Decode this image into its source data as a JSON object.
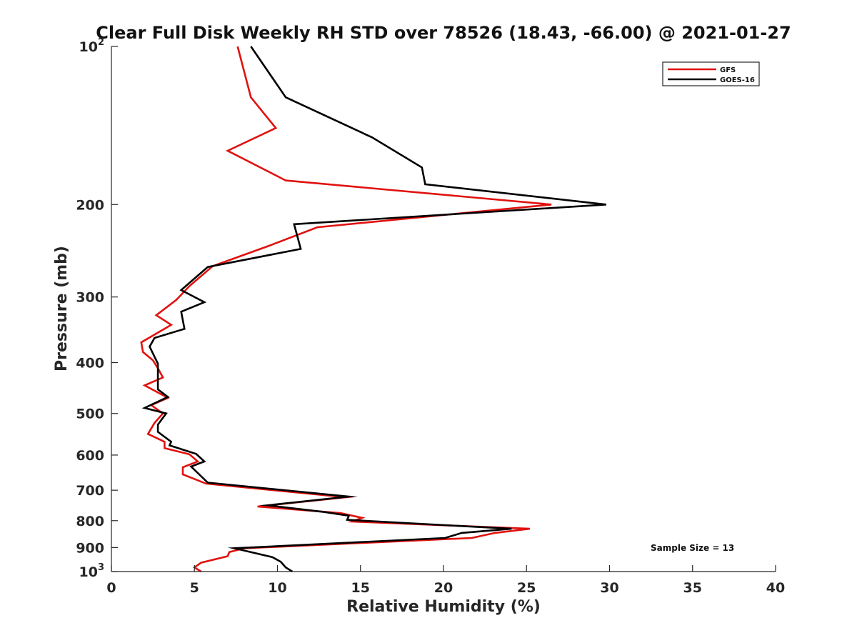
{
  "chart_data": {
    "type": "line",
    "title": "Clear Full Disk Weekly RH STD over 78526 (18.43, -66.00) @ 2021-01-27",
    "xlabel": "Relative Humidity (%)",
    "ylabel": "Pressure (mb)",
    "xlim": [
      0,
      40
    ],
    "ylim": [
      100,
      1000
    ],
    "y_scale": "log",
    "y_reversed": true,
    "grid": false,
    "legend_position": "top-right",
    "x_ticks": [
      "0",
      "5",
      "10",
      "15",
      "20",
      "25",
      "30",
      "35",
      "40"
    ],
    "y_ticks": [
      {
        "value": 100,
        "base": "10",
        "exp": "2"
      },
      {
        "value": 200,
        "label": "200"
      },
      {
        "value": 300,
        "label": "300"
      },
      {
        "value": 400,
        "label": "400"
      },
      {
        "value": 500,
        "label": "500"
      },
      {
        "value": 600,
        "label": "600"
      },
      {
        "value": 700,
        "label": "700"
      },
      {
        "value": 800,
        "label": "800"
      },
      {
        "value": 900,
        "label": "900"
      },
      {
        "value": 1000,
        "base": "10",
        "exp": "3"
      }
    ],
    "annotation": "Sample Size = 13",
    "series": [
      {
        "name": "GFS",
        "color": "#e0120f",
        "points": [
          [
            7.6,
            100
          ],
          [
            8.4,
            125
          ],
          [
            9.9,
            143
          ],
          [
            7.0,
            158
          ],
          [
            10.5,
            180
          ],
          [
            26.5,
            200
          ],
          [
            12.4,
            221
          ],
          [
            9.6,
            239
          ],
          [
            6.1,
            262
          ],
          [
            4.7,
            286
          ],
          [
            3.9,
            304
          ],
          [
            2.7,
            325
          ],
          [
            3.6,
            339
          ],
          [
            1.8,
            366
          ],
          [
            1.9,
            382
          ],
          [
            2.5,
            396
          ],
          [
            2.8,
            410
          ],
          [
            3.1,
            427
          ],
          [
            2.0,
            442
          ],
          [
            3.4,
            467
          ],
          [
            2.4,
            482
          ],
          [
            3.1,
            500
          ],
          [
            2.6,
            521
          ],
          [
            2.2,
            547
          ],
          [
            3.2,
            566
          ],
          [
            3.2,
            582
          ],
          [
            4.7,
            598
          ],
          [
            5.2,
            617
          ],
          [
            4.3,
            633
          ],
          [
            4.3,
            653
          ],
          [
            5.7,
            680
          ],
          [
            14.1,
            722
          ],
          [
            8.8,
            752
          ],
          [
            13.8,
            774
          ],
          [
            15.1,
            790
          ],
          [
            14.5,
            803
          ],
          [
            25.2,
            829
          ],
          [
            23.1,
            844
          ],
          [
            21.7,
            863
          ],
          [
            8.0,
            903
          ],
          [
            7.1,
            918
          ],
          [
            7.0,
            935
          ],
          [
            5.4,
            962
          ],
          [
            5.0,
            982
          ],
          [
            5.4,
            1000
          ]
        ]
      },
      {
        "name": "GOES-16",
        "color": "#000000",
        "points": [
          [
            8.4,
            100
          ],
          [
            10.5,
            125
          ],
          [
            15.7,
            149
          ],
          [
            18.7,
            170
          ],
          [
            18.9,
            183
          ],
          [
            29.8,
            200
          ],
          [
            11.0,
            218
          ],
          [
            11.4,
            243
          ],
          [
            5.8,
            263
          ],
          [
            4.2,
            291
          ],
          [
            5.6,
            307
          ],
          [
            4.2,
            320
          ],
          [
            4.4,
            345
          ],
          [
            2.6,
            359
          ],
          [
            2.3,
            373
          ],
          [
            2.8,
            402
          ],
          [
            2.8,
            428
          ],
          [
            2.8,
            450
          ],
          [
            3.4,
            465
          ],
          [
            2.0,
            488
          ],
          [
            3.3,
            500
          ],
          [
            2.8,
            525
          ],
          [
            2.8,
            542
          ],
          [
            3.6,
            566
          ],
          [
            3.5,
            575
          ],
          [
            5.1,
            597
          ],
          [
            5.6,
            617
          ],
          [
            4.8,
            631
          ],
          [
            5.8,
            677
          ],
          [
            14.3,
            720
          ],
          [
            9.4,
            748
          ],
          [
            12.8,
            770
          ],
          [
            14.3,
            783
          ],
          [
            14.2,
            797
          ],
          [
            24.1,
            829
          ],
          [
            21.1,
            844
          ],
          [
            20.1,
            863
          ],
          [
            7.4,
            903
          ],
          [
            9.7,
            939
          ],
          [
            10.2,
            958
          ],
          [
            10.5,
            982
          ],
          [
            10.9,
            1000
          ]
        ]
      }
    ]
  }
}
